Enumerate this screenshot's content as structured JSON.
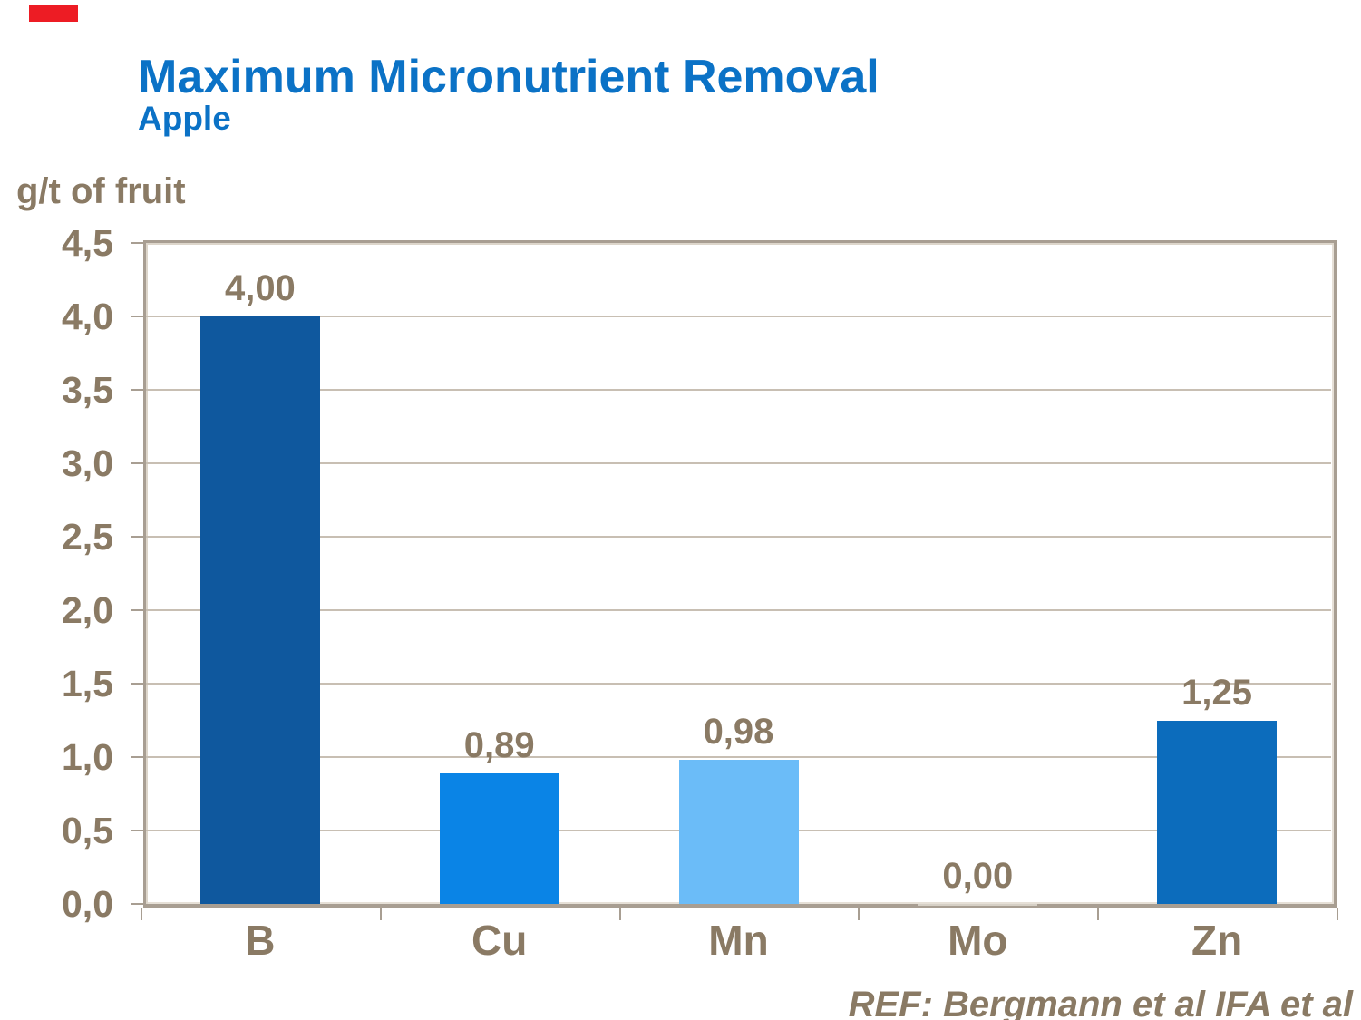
{
  "header": {
    "title": "Maximum Micronutrient Removal",
    "subtitle": "Apple"
  },
  "axis": {
    "unit_label": "g/t of fruit"
  },
  "footer": {
    "reference": "REF: Bergmann et al IFA et al"
  },
  "colors": {
    "title_blue": "#0b72c6",
    "label_brown": "#8a7a64",
    "gridline": "#c8bfb3",
    "axis_line": "#a89e92",
    "zero_bar": "#d6d0c6",
    "accent_red": "#ed1c24"
  },
  "chart_data": {
    "type": "bar",
    "title": "Maximum Micronutrient Removal",
    "subtitle": "Apple",
    "xlabel": "",
    "ylabel": "g/t of fruit",
    "categories": [
      "B",
      "Cu",
      "Mn",
      "Mo",
      "Zn"
    ],
    "values": [
      4.0,
      0.89,
      0.98,
      0.0,
      1.25
    ],
    "value_labels": [
      "4,00",
      "0,89",
      "0,98",
      "0,00",
      "1,25"
    ],
    "bar_colors": [
      "#0f589e",
      "#0a84e6",
      "#6bbcf8",
      "#0a84e6",
      "#0c6cbc"
    ],
    "ylim": [
      0,
      4.5
    ],
    "ytick_step": 0.5,
    "ytick_labels": [
      "0,0",
      "0,5",
      "1,0",
      "1,5",
      "2,0",
      "2,5",
      "3,0",
      "3,5",
      "4,0",
      "4,5"
    ],
    "grid": true,
    "legend": false,
    "decimal_separator": ","
  }
}
